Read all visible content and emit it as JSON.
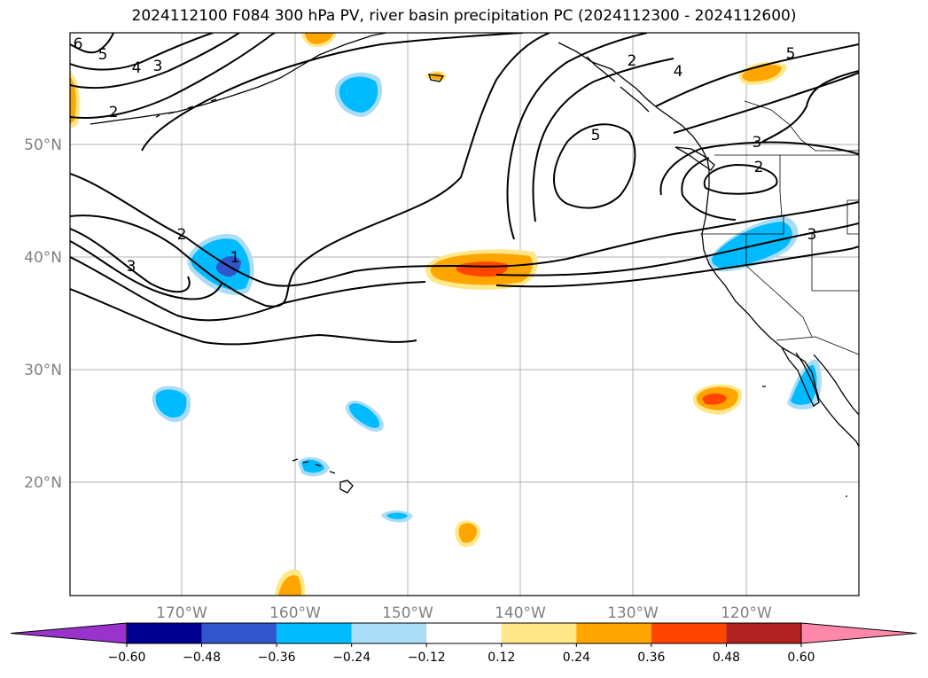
{
  "title": "2024112100 F084 300 hPa PV, river basin precipitation PC (2024112300 - 2024112600)",
  "lat_labels": [
    "50°N",
    "40°N",
    "30°N",
    "20°N"
  ],
  "lon_labels": [
    "170°W",
    "160°W",
    "150°W",
    "140°W",
    "130°W",
    "120°W"
  ],
  "colorbar": {
    "ticks": [
      "−0.60",
      "−0.48",
      "−0.36",
      "−0.24",
      "−0.12",
      "0.12",
      "0.24",
      "0.36",
      "0.48",
      "0.60"
    ],
    "colors": [
      "#9933cc",
      "#000090",
      "#3355cc",
      "#00bbff",
      "#aaddf5",
      "#ffffff",
      "#ffe88a",
      "#ffa500",
      "#ff4500",
      "#b22222",
      "#ff88aa"
    ]
  },
  "contour_labels": [
    "6",
    "5",
    "4",
    "3",
    "2",
    "2",
    "3",
    "1",
    "2",
    "4",
    "5",
    "5",
    "3",
    "2",
    "3"
  ],
  "colors": {
    "grid": "#b0b0b0",
    "axis_text": "#808080"
  }
}
